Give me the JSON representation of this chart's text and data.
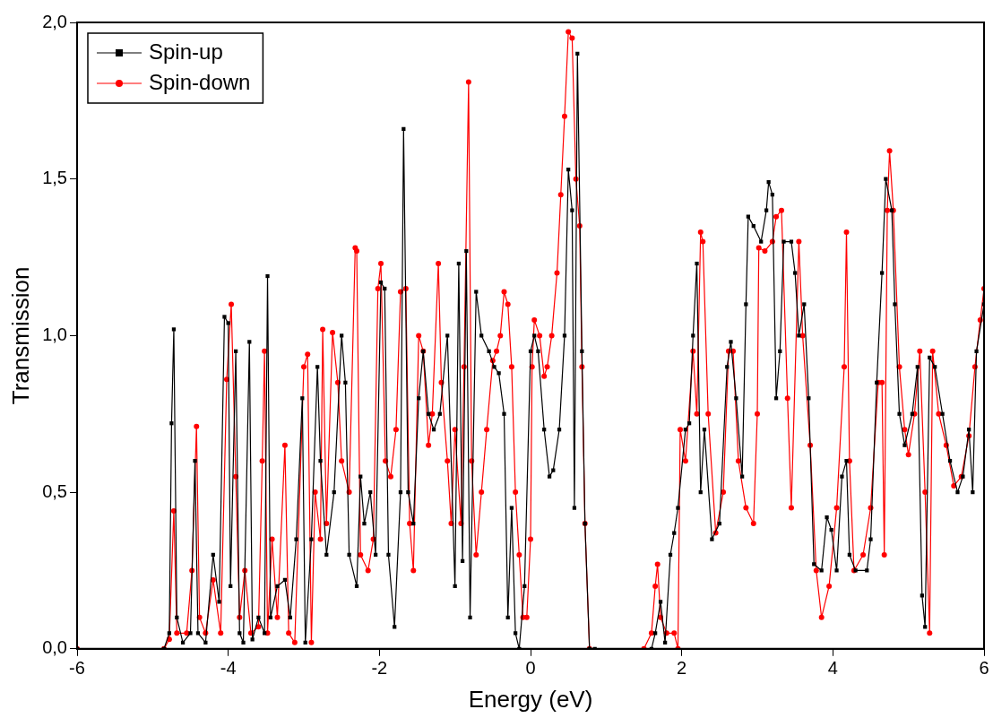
{
  "chart_data": {
    "type": "line",
    "xlabel": "Energy (eV)",
    "ylabel": "Transmission",
    "xlim": [
      -6,
      6
    ],
    "xticks": [
      -6,
      -4,
      -2,
      0,
      2,
      4,
      6
    ],
    "ylim": [
      0,
      2
    ],
    "yticks": [
      {
        "value": 0,
        "label": "0,0"
      },
      {
        "value": 0.5,
        "label": "0,5"
      },
      {
        "value": 1,
        "label": "1,0"
      },
      {
        "value": 1.5,
        "label": "1,5"
      },
      {
        "value": 2,
        "label": "2,0"
      }
    ],
    "grid": false,
    "legend": "top left",
    "line_style": "solid",
    "series": [
      {
        "name": "Spin-up",
        "color": "#000000",
        "marker": "square",
        "x": [
          -6,
          -4.85,
          -4.78,
          -4.75,
          -4.72,
          -4.68,
          -4.6,
          -4.5,
          -4.44,
          -4.4,
          -4.3,
          -4.2,
          -4.12,
          -4.05,
          -4.0,
          -3.97,
          -3.9,
          -3.85,
          -3.8,
          -3.72,
          -3.68,
          -3.6,
          -3.52,
          -3.48,
          -3.44,
          -3.35,
          -3.25,
          -3.18,
          -3.1,
          -3.02,
          -2.98,
          -2.9,
          -2.82,
          -2.78,
          -2.7,
          -2.6,
          -2.5,
          -2.45,
          -2.4,
          -2.3,
          -2.25,
          -2.2,
          -2.12,
          -2.05,
          -1.98,
          -1.93,
          -1.88,
          -1.8,
          -1.72,
          -1.68,
          -1.62,
          -1.55,
          -1.48,
          -1.42,
          -1.35,
          -1.28,
          -1.2,
          -1.1,
          -1.0,
          -0.95,
          -0.9,
          -0.85,
          -0.8,
          -0.72,
          -0.65,
          -0.55,
          -0.48,
          -0.42,
          -0.35,
          -0.3,
          -0.25,
          -0.2,
          -0.15,
          -0.08,
          0,
          0.05,
          0.1,
          0.18,
          0.25,
          0.3,
          0.38,
          0.45,
          0.5,
          0.55,
          0.58,
          0.62,
          0.68,
          0.72,
          0.78,
          0.85,
          1.6,
          1.65,
          1.72,
          1.78,
          1.85,
          1.9,
          1.95,
          2.05,
          2.1,
          2.15,
          2.2,
          2.25,
          2.3,
          2.4,
          2.5,
          2.6,
          2.65,
          2.72,
          2.8,
          2.85,
          2.88,
          2.95,
          3.05,
          3.12,
          3.15,
          3.2,
          3.25,
          3.3,
          3.35,
          3.45,
          3.5,
          3.55,
          3.62,
          3.68,
          3.75,
          3.85,
          3.92,
          3.98,
          4.05,
          4.12,
          4.18,
          4.22,
          4.3,
          4.45,
          4.5,
          4.58,
          4.65,
          4.7,
          4.78,
          4.82,
          4.88,
          4.95,
          5.05,
          5.12,
          5.18,
          5.22,
          5.28,
          5.35,
          5.45,
          5.55,
          5.65,
          5.72,
          5.8,
          5.85,
          5.9,
          6
        ],
        "values": [
          0,
          0,
          0.05,
          0.72,
          1.02,
          0.1,
          0.02,
          0.05,
          0.6,
          0.05,
          0.02,
          0.3,
          0.15,
          1.06,
          1.04,
          0.2,
          0.95,
          0.05,
          0.02,
          0.98,
          0.03,
          0.1,
          0.05,
          1.19,
          0.1,
          0.2,
          0.22,
          0.1,
          0.35,
          0.8,
          0.02,
          0.35,
          0.9,
          0.6,
          0.3,
          0.5,
          1.0,
          0.85,
          0.3,
          0.2,
          0.55,
          0.4,
          0.5,
          0.3,
          1.17,
          1.15,
          0.3,
          0.07,
          0.5,
          1.66,
          0.5,
          0.4,
          0.8,
          0.95,
          0.75,
          0.7,
          0.75,
          1.0,
          0.2,
          1.23,
          0.28,
          1.27,
          0.1,
          1.14,
          1.0,
          0.95,
          0.9,
          0.88,
          0.75,
          0.1,
          0.45,
          0.05,
          0.0,
          0.2,
          0.95,
          1.0,
          0.95,
          0.7,
          0.55,
          0.57,
          0.7,
          1.0,
          1.53,
          1.4,
          0.45,
          1.9,
          0.95,
          0.4,
          0.0,
          0.0,
          0,
          0.05,
          0.15,
          0.02,
          0.3,
          0.37,
          0.45,
          0.7,
          0.72,
          1.0,
          1.23,
          0.5,
          0.7,
          0.35,
          0.4,
          0.9,
          0.98,
          0.8,
          0.55,
          1.1,
          1.38,
          1.35,
          1.3,
          1.4,
          1.49,
          1.45,
          0.8,
          0.95,
          1.3,
          1.3,
          1.2,
          1.0,
          1.1,
          0.8,
          0.27,
          0.25,
          0.42,
          0.38,
          0.25,
          0.55,
          0.6,
          0.3,
          0.25,
          0.25,
          0.35,
          0.85,
          1.2,
          1.5,
          1.4,
          1.1,
          0.75,
          0.65,
          0.75,
          0.9,
          0.17,
          0.07,
          0.93,
          0.9,
          0.75,
          0.6,
          0.5,
          0.55,
          0.7,
          0.5,
          0.95,
          1.1
        ]
      },
      {
        "name": "Spin-down",
        "color": "#ff0000",
        "marker": "circle",
        "x": [
          -6,
          -4.85,
          -4.78,
          -4.72,
          -4.68,
          -4.55,
          -4.48,
          -4.42,
          -4.38,
          -4.3,
          -4.2,
          -4.1,
          -4.02,
          -3.96,
          -3.9,
          -3.85,
          -3.78,
          -3.7,
          -3.6,
          -3.55,
          -3.52,
          -3.48,
          -3.42,
          -3.35,
          -3.25,
          -3.2,
          -3.12,
          -3.0,
          -2.95,
          -2.9,
          -2.85,
          -2.78,
          -2.75,
          -2.7,
          -2.62,
          -2.55,
          -2.5,
          -2.4,
          -2.32,
          -2.3,
          -2.25,
          -2.15,
          -2.08,
          -2.02,
          -1.98,
          -1.92,
          -1.85,
          -1.78,
          -1.72,
          -1.65,
          -1.6,
          -1.55,
          -1.48,
          -1.42,
          -1.35,
          -1.3,
          -1.22,
          -1.18,
          -1.1,
          -1.05,
          -1.0,
          -0.92,
          -0.88,
          -0.82,
          -0.78,
          -0.72,
          -0.65,
          -0.58,
          -0.5,
          -0.45,
          -0.4,
          -0.35,
          -0.3,
          -0.25,
          -0.2,
          -0.15,
          -0.1,
          -0.05,
          0.0,
          0.02,
          0.05,
          0.12,
          0.18,
          0.22,
          0.28,
          0.35,
          0.4,
          0.45,
          0.5,
          0.55,
          0.6,
          0.65,
          0.68,
          0.72,
          0.78,
          1.5,
          1.6,
          1.65,
          1.68,
          1.72,
          1.8,
          1.9,
          1.95,
          1.98,
          2.05,
          2.15,
          2.2,
          2.25,
          2.28,
          2.35,
          2.45,
          2.55,
          2.62,
          2.68,
          2.75,
          2.85,
          2.95,
          3.0,
          3.02,
          3.1,
          3.2,
          3.25,
          3.32,
          3.4,
          3.45,
          3.55,
          3.6,
          3.7,
          3.78,
          3.85,
          3.95,
          4.05,
          4.15,
          4.18,
          4.22,
          4.28,
          4.4,
          4.5,
          4.6,
          4.65,
          4.68,
          4.72,
          4.75,
          4.8,
          4.88,
          4.95,
          5.0,
          5.08,
          5.15,
          5.22,
          5.28,
          5.32,
          5.4,
          5.5,
          5.6,
          5.7,
          5.8,
          5.88,
          5.95,
          6
        ],
        "values": [
          0,
          0,
          0.03,
          0.44,
          0.05,
          0.05,
          0.25,
          0.71,
          0.1,
          0.05,
          0.22,
          0.05,
          0.86,
          1.1,
          0.55,
          0.1,
          0.25,
          0.05,
          0.07,
          0.6,
          0.95,
          0.05,
          0.35,
          0.1,
          0.65,
          0.05,
          0.02,
          0.9,
          0.94,
          0.02,
          0.5,
          0.35,
          1.02,
          0.4,
          1.01,
          0.85,
          0.6,
          0.5,
          1.28,
          1.27,
          0.3,
          0.25,
          0.35,
          1.15,
          1.23,
          0.6,
          0.55,
          0.7,
          1.14,
          1.15,
          0.4,
          0.25,
          1.0,
          0.95,
          0.65,
          0.75,
          1.23,
          0.85,
          0.6,
          0.4,
          0.7,
          0.4,
          0.9,
          1.81,
          0.6,
          0.3,
          0.5,
          0.7,
          0.92,
          0.95,
          1.0,
          1.14,
          1.1,
          0.9,
          0.5,
          0.3,
          0.1,
          0.1,
          0.35,
          0.9,
          1.05,
          1.0,
          0.87,
          0.9,
          1.0,
          1.2,
          1.45,
          1.7,
          1.97,
          1.95,
          1.5,
          1.35,
          0.9,
          0.4,
          0.0,
          0,
          0.05,
          0.2,
          0.27,
          0.1,
          0.05,
          0.05,
          0.0,
          0.7,
          0.6,
          0.95,
          0.75,
          1.33,
          1.3,
          0.75,
          0.37,
          0.5,
          0.95,
          0.95,
          0.6,
          0.45,
          0.4,
          0.75,
          1.28,
          1.27,
          1.3,
          1.38,
          1.4,
          0.8,
          0.45,
          1.3,
          1.0,
          0.65,
          0.25,
          0.1,
          0.2,
          0.45,
          0.9,
          1.33,
          0.6,
          0.25,
          0.3,
          0.45,
          0.85,
          0.85,
          0.3,
          1.4,
          1.59,
          1.4,
          0.9,
          0.7,
          0.62,
          0.75,
          0.95,
          0.5,
          0.05,
          0.95,
          0.75,
          0.65,
          0.52,
          0.55,
          0.68,
          0.9,
          1.05,
          1.15
        ]
      }
    ]
  }
}
